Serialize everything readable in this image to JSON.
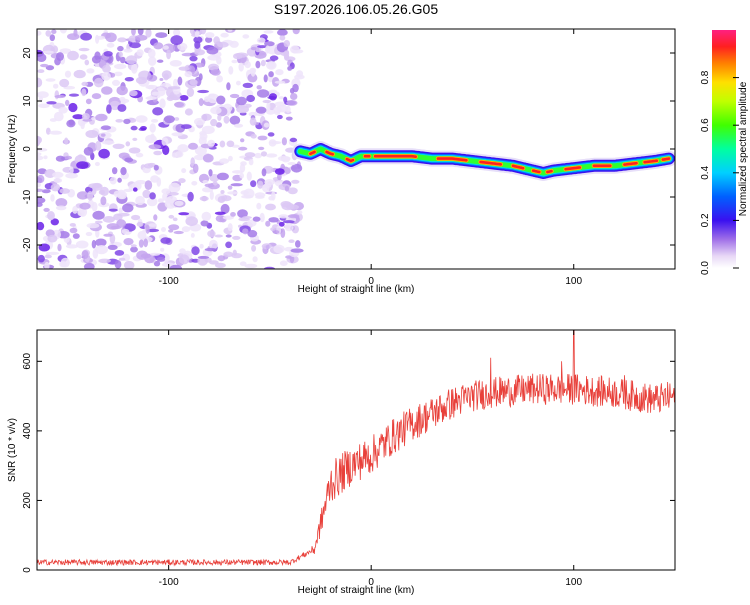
{
  "title": "S197.2026.106.05.26.G05",
  "chart_data": [
    {
      "type": "heatmap",
      "name": "spectrogram",
      "xlabel": "Height of straight line (km)",
      "ylabel": "Frequency (Hz)",
      "xlim": [
        -165,
        150
      ],
      "ylim": [
        -25,
        25
      ],
      "xticks": [
        -100,
        0,
        100
      ],
      "xtick_labels": [
        "-100",
        "0",
        "100"
      ],
      "yticks": [
        -20,
        -10,
        0,
        10,
        20
      ],
      "ytick_labels": [
        "-20",
        "-10",
        "0",
        "10",
        "20"
      ],
      "noise_region_x": [
        -165,
        -35
      ],
      "signal_track": {
        "x": [
          -35,
          -30,
          -25,
          -20,
          -15,
          -10,
          -5,
          0,
          10,
          20,
          30,
          40,
          50,
          60,
          70,
          80,
          85,
          90,
          100,
          110,
          120,
          130,
          140,
          147
        ],
        "y": [
          -0.5,
          -1,
          0,
          -1,
          -1.5,
          -2.5,
          -1.5,
          -1.5,
          -1.5,
          -1.5,
          -2,
          -2,
          -2.5,
          -3,
          -3.5,
          -4.5,
          -5,
          -4.5,
          -4,
          -3.5,
          -3.5,
          -3,
          -2.5,
          -2
        ]
      },
      "colorbar": {
        "label": "Normalized spectral amplitude",
        "ticks": [
          0.0,
          0.2,
          0.4,
          0.6,
          0.8
        ],
        "tick_labels": [
          "0.0",
          "0.2",
          "0.4",
          "0.6",
          "0.8"
        ],
        "range": [
          0,
          1
        ]
      }
    },
    {
      "type": "line",
      "name": "snr",
      "xlabel": "Height of straight line (km)",
      "ylabel": "SNR (10 * v/v)",
      "xlim": [
        -165,
        150
      ],
      "ylim": [
        0,
        690
      ],
      "xticks": [
        -100,
        0,
        100
      ],
      "xtick_labels": [
        "-100",
        "0",
        "100"
      ],
      "yticks": [
        0,
        200,
        400,
        600
      ],
      "ytick_labels": [
        "0",
        "200",
        "400",
        "600"
      ],
      "color": "#e8403a",
      "trend": {
        "x": [
          -165,
          -40,
          -28,
          -20,
          -10,
          0,
          10,
          20,
          30,
          40,
          50,
          60,
          80,
          100,
          120,
          140,
          150
        ],
        "y": [
          22,
          22,
          60,
          250,
          300,
          330,
          380,
          420,
          450,
          480,
          500,
          510,
          520,
          520,
          510,
          490,
          500
        ]
      },
      "noise_amplitude": {
        "x": [
          -165,
          -30,
          -20,
          0,
          50,
          150
        ],
        "y": [
          8,
          8,
          60,
          55,
          45,
          45
        ]
      },
      "spikes": [
        {
          "x": 100,
          "y": 690
        },
        {
          "x": 94,
          "y": 600
        },
        {
          "x": 59,
          "y": 610
        },
        {
          "x": 125,
          "y": 560
        }
      ]
    }
  ]
}
